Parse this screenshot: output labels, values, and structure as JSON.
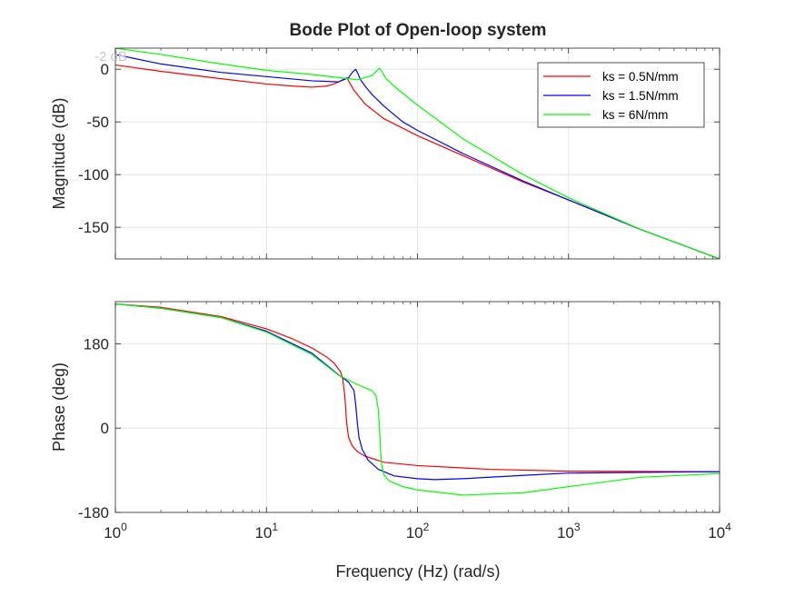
{
  "chart_data": {
    "type": "line",
    "title": "Bode Plot of Open-loop system",
    "xlabel": "Frequency (Hz) (rad/s)",
    "x_scale": "log",
    "xlim": [
      1,
      10000
    ],
    "x_ticks": [
      1,
      10,
      100,
      1000,
      10000
    ],
    "x_tick_labels": [
      {
        "base": "10",
        "exp": "0"
      },
      {
        "base": "10",
        "exp": "1"
      },
      {
        "base": "10",
        "exp": "2"
      },
      {
        "base": "10",
        "exp": "3"
      },
      {
        "base": "10",
        "exp": "4"
      }
    ],
    "grid": true,
    "legend": {
      "placement": "top-right",
      "entries": [
        "ks = 0.5N/mm",
        "ks = 1.5N/mm",
        "ks = 6N/mm"
      ]
    },
    "series": [
      {
        "name": "ks = 0.5N/mm",
        "color": "#ff0000"
      },
      {
        "name": "ks = 1.5N/mm",
        "color": "#0000ff"
      },
      {
        "name": "ks = 6N/mm",
        "color": "#00ff00"
      }
    ],
    "subplots": [
      {
        "ylabel": "Magnitude (dB)",
        "ylim": [
          -180,
          20
        ],
        "y_ticks": [
          0,
          -50,
          -100,
          -150
        ],
        "y_tick_labels": [
          "0",
          "-50",
          "-100",
          "-150"
        ],
        "overlay_label": "-2 dB",
        "series": [
          {
            "name": "ks = 0.5N/mm",
            "x": [
              1,
              2,
              5,
              10,
              15,
              20,
              25,
              28,
              31,
              34,
              38,
              45,
              60,
              100,
              200,
              500,
              1000,
              3000,
              10000
            ],
            "y": [
              4,
              -2,
              -9,
              -14,
              -16,
              -17,
              -16,
              -14,
              -11,
              -8,
              -20,
              -33,
              -47,
              -63,
              -82,
              -107,
              -124,
              -152,
              -180
            ]
          },
          {
            "name": "ks = 1.5N/mm",
            "x": [
              1,
              2,
              5,
              10,
              20,
              30,
              35,
              37,
              39,
              40,
              42,
              45,
              50,
              60,
              80,
              100,
              200,
              500,
              1000,
              3000,
              10000
            ],
            "y": [
              14,
              5,
              -3,
              -7,
              -11,
              -12,
              -8,
              -3,
              0,
              -3,
              -10,
              -16,
              -24,
              -35,
              -50,
              -58,
              -80,
              -106,
              -124,
              -152,
              -180
            ]
          },
          {
            "name": "ks = 6N/mm",
            "x": [
              1,
              2,
              5,
              10,
              20,
              40,
              50,
              54,
              56,
              58,
              62,
              70,
              80,
              100,
              200,
              500,
              1000,
              3000,
              10000
            ],
            "y": [
              20,
              14,
              5,
              -1,
              -5,
              -10,
              -6,
              -1,
              1,
              -2,
              -9,
              -16,
              -23,
              -34,
              -66,
              -100,
              -122,
              -152,
              -180
            ]
          }
        ]
      },
      {
        "ylabel": "Phase (deg)",
        "ylim": [
          -180,
          270
        ],
        "y_ticks": [
          180,
          0,
          -180
        ],
        "y_tick_labels": [
          "180",
          "0",
          "-180"
        ],
        "series": [
          {
            "name": "ks = 0.5N/mm",
            "x": [
              1,
              2,
              5,
              10,
              15,
              20,
              25,
              28,
              31,
              32,
              33,
              34,
              35,
              37,
              40,
              45,
              60,
              100,
              300,
              1000,
              10000
            ],
            "y": [
              265,
              258,
              238,
              212,
              190,
              171,
              152,
              139,
              120,
              105,
              70,
              10,
              -20,
              -38,
              -50,
              -60,
              -73,
              -80,
              -88,
              -92,
              -93
            ]
          },
          {
            "name": "ks = 1.5N/mm",
            "x": [
              1,
              2,
              5,
              10,
              20,
              30,
              35,
              38,
              39,
              40,
              41,
              43,
              47,
              55,
              70,
              100,
              130,
              200,
              500,
              1000,
              10000
            ],
            "y": [
              265,
              256,
              236,
              207,
              160,
              114,
              98,
              80,
              50,
              10,
              -20,
              -45,
              -68,
              -88,
              -102,
              -108,
              -110,
              -108,
              -101,
              -96,
              -93
            ]
          },
          {
            "name": "ks = 6N/mm",
            "x": [
              1,
              2,
              5,
              10,
              20,
              30,
              40,
              50,
              53,
              55,
              56,
              57,
              58,
              60,
              65,
              80,
              100,
              200,
              500,
              1000,
              3000,
              10000
            ],
            "y": [
              265,
              256,
              236,
              205,
              157,
              113,
              93,
              80,
              70,
              40,
              0,
              -50,
              -80,
              -100,
              -113,
              -125,
              -132,
              -143,
              -138,
              -125,
              -105,
              -97
            ]
          }
        ]
      }
    ]
  }
}
